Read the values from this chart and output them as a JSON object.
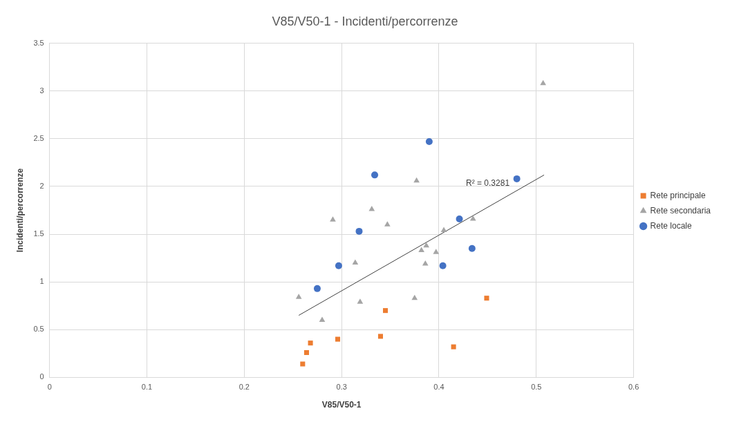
{
  "chart_data": {
    "type": "scatter",
    "title": "V85/V50-1 - Incidenti/percorrenze",
    "xlabel": "V85/V50-1",
    "ylabel": "Incidenti/percorrenze",
    "xlim": [
      0,
      0.6
    ],
    "xticks": [
      0,
      0.1,
      0.2,
      0.3,
      0.4,
      0.5,
      0.6
    ],
    "ylim": [
      0,
      3.5
    ],
    "yticks": [
      0,
      0.5,
      1,
      1.5,
      2,
      2.5,
      3,
      3.5
    ],
    "grid": true,
    "legend": "right",
    "series": [
      {
        "name": "Rete principale",
        "color": "#ed7d31",
        "marker": "square",
        "x": [
          0.26,
          0.264,
          0.268,
          0.296,
          0.34,
          0.345,
          0.415,
          0.449
        ],
        "values": [
          0.14,
          0.26,
          0.36,
          0.4,
          0.43,
          0.7,
          0.32,
          0.83
        ]
      },
      {
        "name": "Rete secondaria",
        "color": "#a5a5a5",
        "marker": "triangle",
        "x": [
          0.256,
          0.28,
          0.291,
          0.314,
          0.319,
          0.331,
          0.347,
          0.375,
          0.377,
          0.382,
          0.387,
          0.386,
          0.397,
          0.405,
          0.435,
          0.507
        ],
        "values": [
          0.84,
          0.6,
          1.65,
          1.2,
          0.79,
          1.76,
          1.6,
          0.83,
          2.06,
          1.33,
          1.38,
          1.19,
          1.31,
          1.54,
          1.66,
          3.08
        ]
      },
      {
        "name": "Rete locale",
        "color": "#4472c4",
        "marker": "circle",
        "x": [
          0.275,
          0.297,
          0.334,
          0.318,
          0.39,
          0.404,
          0.421,
          0.434,
          0.48
        ],
        "values": [
          0.93,
          1.17,
          2.12,
          1.53,
          2.47,
          1.17,
          1.66,
          1.35,
          2.08
        ]
      },
      {
        "type": "line",
        "color": "#404040",
        "marker": "none",
        "x": [
          0.256,
          0.508
        ],
        "values": [
          0.65,
          2.12
        ]
      }
    ],
    "annotations": [
      "R² = 0.3281"
    ]
  }
}
